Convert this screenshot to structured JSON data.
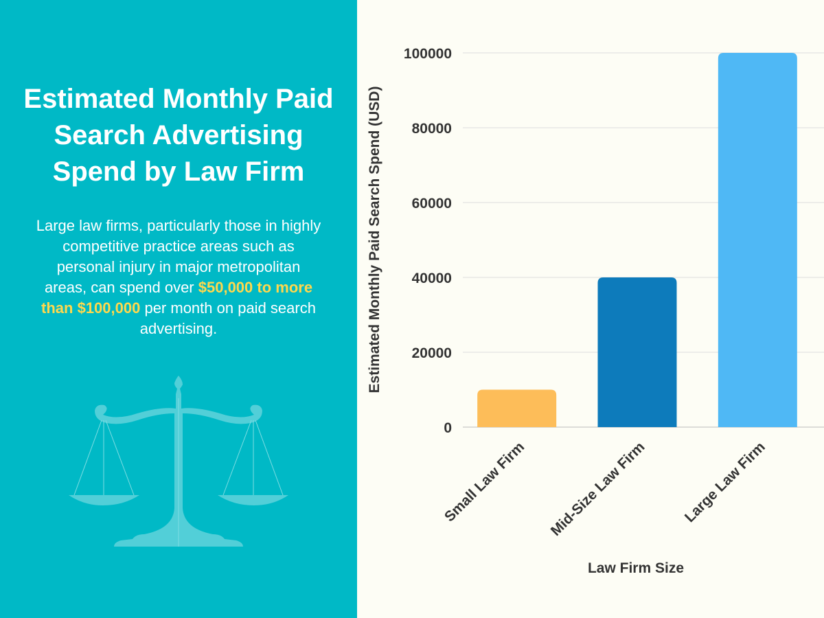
{
  "left_panel": {
    "title": "Estimated Monthly Paid Search Advertising Spend by Law Firm",
    "description_before": "Large law firms, particularly those in highly competitive practice areas such as personal injury in major metropolitan areas, can spend over ",
    "description_highlight": "$50,000 to more than $100,000",
    "description_after": " per month on paid search advertising.",
    "background_color": "#00B9C6",
    "highlight_color": "#FFD84D",
    "illustration": "scales-of-justice-icon"
  },
  "chart_data": {
    "type": "bar",
    "categories": [
      "Small Law Firm",
      "Mid-Size Law Firm",
      "Large Law Firm"
    ],
    "values": [
      10000,
      40000,
      100000
    ],
    "colors": [
      "#FDBD59",
      "#0D7BBB",
      "#4FB8F5"
    ],
    "xlabel": "Law Firm Size",
    "ylabel": "Estimated Monthly Paid Search Spend (USD)",
    "ylim": [
      0,
      100000
    ],
    "yticks": [
      0,
      20000,
      40000,
      60000,
      80000,
      100000
    ],
    "grid": true
  }
}
